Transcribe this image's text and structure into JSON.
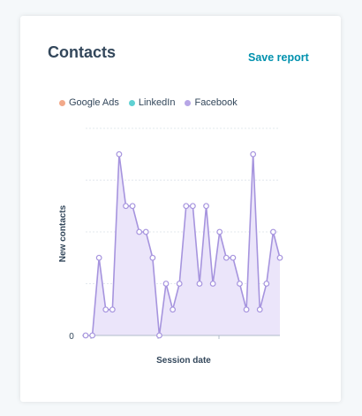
{
  "report": {
    "title": "Contacts",
    "save_label": "Save report"
  },
  "colors": {
    "google_ads": "#f2a98a",
    "linkedin": "#5fd1d3",
    "facebook": "#b7a6e6",
    "facebook_line": "#a694de",
    "facebook_fill": "#ebe5fa",
    "title": "#33475b",
    "link": "#0091ae"
  },
  "chart_data": {
    "type": "area",
    "xlabel": "Session date",
    "ylabel": "New contacts",
    "ylim": [
      0,
      8
    ],
    "y_tick_labels": [
      {
        "value": 0,
        "label": "0"
      }
    ],
    "legend_position": "top-left",
    "grid": true,
    "series": [
      {
        "name": "Google Ads",
        "color": "#f2a98a",
        "values": []
      },
      {
        "name": "LinkedIn",
        "color": "#5fd1d3",
        "values": []
      },
      {
        "name": "Facebook",
        "color": "#b7a6e6",
        "values": [
          0,
          0,
          3,
          1,
          1,
          7,
          5,
          5,
          4,
          4,
          3,
          0,
          2,
          1,
          2,
          5,
          5,
          2,
          5,
          2,
          4,
          3,
          3,
          2,
          1,
          7,
          1,
          2,
          4,
          3
        ]
      }
    ]
  }
}
